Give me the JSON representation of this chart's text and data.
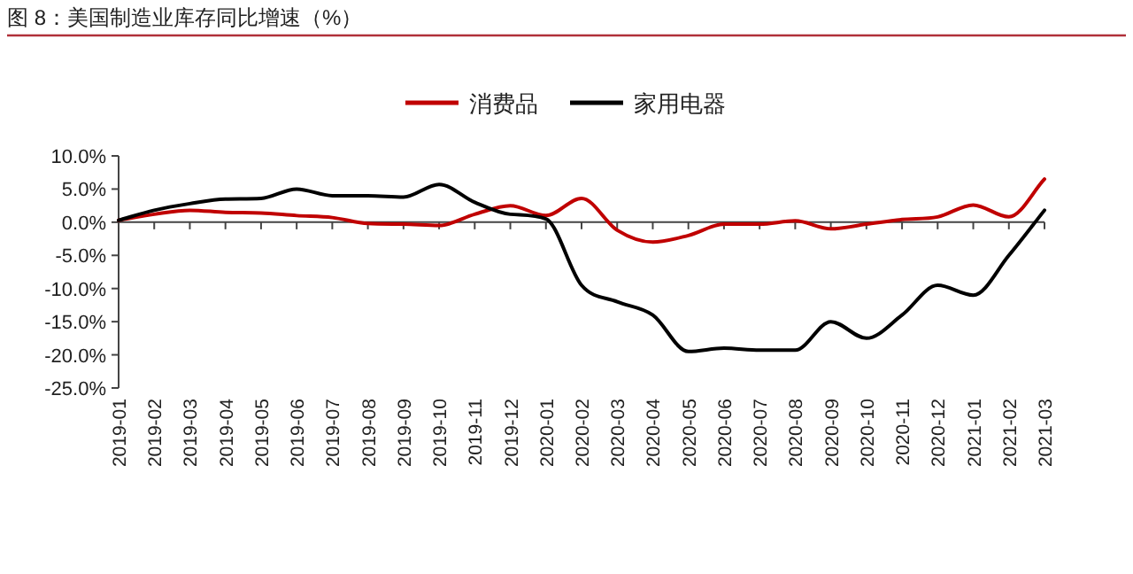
{
  "chart_data": {
    "type": "line",
    "title": "图 8：美国制造业库存同比增速（%）",
    "categories": [
      "2019-01",
      "2019-02",
      "2019-03",
      "2019-04",
      "2019-05",
      "2019-06",
      "2019-07",
      "2019-08",
      "2019-09",
      "2019-10",
      "2019-11",
      "2019-12",
      "2020-01",
      "2020-02",
      "2020-03",
      "2020-04",
      "2020-05",
      "2020-06",
      "2020-07",
      "2020-08",
      "2020-09",
      "2020-10",
      "2020-11",
      "2020-12",
      "2021-01",
      "2021-02",
      "2021-03"
    ],
    "series": [
      {
        "name": "消费品",
        "color": "#c00000",
        "values": [
          0.3,
          1.2,
          1.8,
          1.5,
          1.4,
          1.0,
          0.7,
          -0.2,
          -0.3,
          -0.5,
          1.2,
          2.5,
          1.0,
          3.6,
          -1.2,
          -3.0,
          -2.0,
          -0.3,
          -0.3,
          0.2,
          -1.0,
          -0.3,
          0.4,
          0.8,
          2.6,
          0.8,
          6.5
        ]
      },
      {
        "name": "家用电器",
        "color": "#000000",
        "values": [
          0.3,
          1.8,
          2.8,
          3.5,
          3.6,
          5.0,
          4.0,
          4.0,
          3.8,
          5.7,
          3.0,
          1.2,
          0.5,
          -9.5,
          -12.0,
          -14.0,
          -19.5,
          -19.0,
          -19.3,
          -19.3,
          -15.0,
          -17.5,
          -14.0,
          -9.5,
          -11.0,
          -5.0,
          1.8
        ]
      }
    ],
    "ylim": [
      -25,
      10
    ],
    "yticks": [
      {
        "value": 10,
        "label": "10.0%"
      },
      {
        "value": 5,
        "label": "5.0%"
      },
      {
        "value": 0,
        "label": "0.0%"
      },
      {
        "value": -5,
        "label": "-5.0%"
      },
      {
        "value": -10,
        "label": "-10.0%"
      },
      {
        "value": -15,
        "label": "-15.0%"
      },
      {
        "value": -20,
        "label": "-20.0%"
      },
      {
        "value": -25,
        "label": "-25.0%"
      }
    ],
    "legend": "top",
    "marker": "none",
    "line_style": "solid"
  }
}
